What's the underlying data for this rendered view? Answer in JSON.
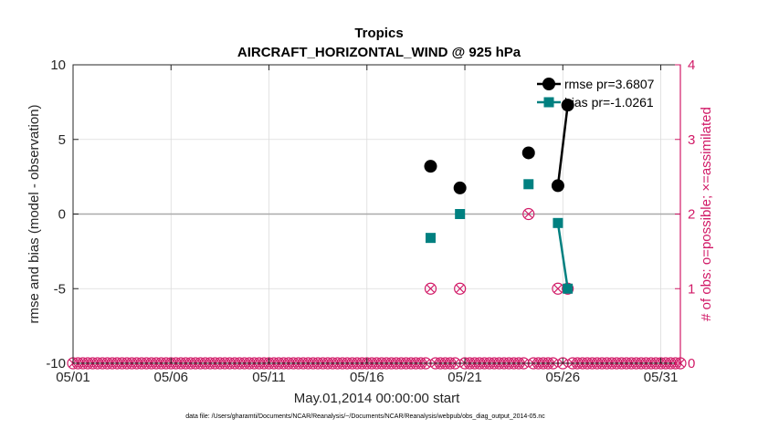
{
  "chart_data": {
    "type": "line",
    "title": "Tropics",
    "subtitle": "AIRCRAFT_HORIZONTAL_WIND @ 925 hPa",
    "xlabel": "May.01,2014 00:00:00 start",
    "ylabel": "rmse and bias (model - observation)",
    "y2label": "# of obs: o=possible; ×=assimilated",
    "footnote": "data file: /Users/gharamti/Documents/NCAR/Reanalysis/~/Documents/NCAR/Reanalysis/webpub/obs_diag_output_2014-05.nc",
    "xlim": [
      1,
      32
    ],
    "ylim": [
      -10,
      10
    ],
    "y2lim": [
      0,
      4
    ],
    "x_ticks": [
      1,
      6,
      11,
      16,
      21,
      26,
      31
    ],
    "x_tick_labels": [
      "05/01",
      "05/06",
      "05/11",
      "05/16",
      "05/21",
      "05/26",
      "05/31"
    ],
    "y_ticks": [
      -10,
      -5,
      0,
      5,
      10
    ],
    "y_tick_labels": [
      "-10",
      "-5",
      "0",
      "5",
      "10"
    ],
    "y2_ticks": [
      0,
      1,
      2,
      3,
      4
    ],
    "y2_tick_labels": [
      "0",
      "1",
      "2",
      "3",
      "4"
    ],
    "grid": true,
    "legend_position": "top-right",
    "zero_line": 0,
    "series": [
      {
        "name": "rmse",
        "legend": "rmse pr=3.6807",
        "color": "#000000",
        "marker": "circle",
        "axis": "left",
        "x": [
          19.25,
          20.75,
          22.75,
          24.25,
          25.75,
          26.25
        ],
        "values": [
          3.2,
          1.75,
          null,
          4.1,
          1.9,
          7.3
        ]
      },
      {
        "name": "bias",
        "legend": "bias pr=-1.0261",
        "color": "#008080",
        "marker": "square",
        "axis": "left",
        "x": [
          19.25,
          20.75,
          22.75,
          24.25,
          25.75,
          26.25
        ],
        "values": [
          -1.6,
          0.0,
          null,
          2.0,
          -0.6,
          -5.0
        ]
      },
      {
        "name": "observations",
        "color": "#d11a67",
        "marker": "circle-cross",
        "axis": "right",
        "x_start": 1.0,
        "x_step": 0.25,
        "count": 125,
        "nonzero": [
          {
            "x": 19.25,
            "possible": 1,
            "assimilated": 1
          },
          {
            "x": 20.75,
            "possible": 1,
            "assimilated": 1
          },
          {
            "x": 24.25,
            "possible": 2,
            "assimilated": 2
          },
          {
            "x": 25.75,
            "possible": 1,
            "assimilated": 1
          },
          {
            "x": 26.25,
            "possible": 1,
            "assimilated": 1
          }
        ]
      }
    ]
  }
}
